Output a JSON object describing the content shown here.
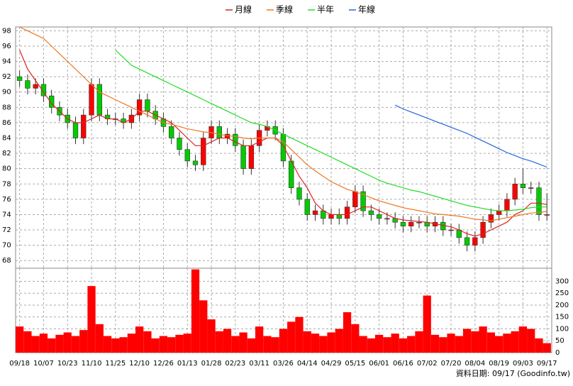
{
  "chart_data": {
    "type": "candlestick",
    "series": [
      {
        "name": "月線",
        "color": "#dd2222",
        "values": [
          95.5,
          93,
          91.5,
          90,
          88.5,
          87.5,
          86.5,
          86,
          86,
          86.5,
          87,
          86.5,
          86.5,
          86,
          86.5,
          87.5,
          87.5,
          87,
          86.5,
          86,
          85,
          84,
          83,
          83,
          83.5,
          84,
          84,
          83.5,
          83,
          83,
          83.5,
          84,
          84,
          83,
          81,
          79,
          77.5,
          75.5,
          74.5,
          74,
          74,
          74,
          74.5,
          75,
          75,
          74.5,
          74,
          73.5,
          73.3,
          73.2,
          73.1,
          73,
          72.8,
          72.6,
          72.4,
          72,
          71.5,
          71.2,
          71.5,
          72,
          72.5,
          73,
          74,
          74.5,
          75.5,
          75.5,
          75.3
        ]
      },
      {
        "name": "季線",
        "color": "#ee7722",
        "values": [
          98.5,
          98,
          97.5,
          97,
          96,
          95,
          94,
          93,
          92,
          91,
          90,
          89.5,
          89,
          88.5,
          88,
          87.5,
          87,
          86.5,
          86,
          85.8,
          85.5,
          85.2,
          85,
          84.8,
          84.7,
          84.5,
          84.3,
          84.2,
          84,
          83.9,
          84,
          84,
          84,
          83.5,
          82.5,
          81.5,
          80.5,
          79.7,
          79,
          78.3,
          77.8,
          77.3,
          77,
          76.6,
          76.2,
          75.8,
          75.5,
          75.2,
          74.9,
          74.7,
          74.5,
          74.3,
          74.1,
          74,
          73.9,
          73.8,
          73.6,
          73.4,
          73.3,
          73.2,
          73.4,
          73.6,
          73.8,
          74,
          74.2,
          74.3,
          74.4
        ]
      },
      {
        "name": "半年",
        "color": "#22dd22",
        "values": [
          null,
          null,
          null,
          null,
          null,
          null,
          null,
          null,
          null,
          null,
          null,
          null,
          95.5,
          94.5,
          93.5,
          93,
          92.5,
          92,
          91.5,
          91,
          90.5,
          90,
          89.5,
          89,
          88.5,
          88,
          87.5,
          87,
          86.5,
          86,
          85.8,
          85.5,
          85,
          84.5,
          84,
          83.5,
          83,
          82.5,
          82,
          81.5,
          81,
          80.5,
          80,
          79.5,
          79,
          78.5,
          78.1,
          77.8,
          77.5,
          77.2,
          77,
          76.7,
          76.4,
          76.1,
          75.8,
          75.5,
          75.2,
          75,
          74.8,
          74.6,
          74.5,
          74.5,
          74.6,
          74.7,
          74.9,
          75,
          75
        ]
      },
      {
        "name": "年線",
        "color": "#2266dd",
        "values": [
          null,
          null,
          null,
          null,
          null,
          null,
          null,
          null,
          null,
          null,
          null,
          null,
          null,
          null,
          null,
          null,
          null,
          null,
          null,
          null,
          null,
          null,
          null,
          null,
          null,
          null,
          null,
          null,
          null,
          null,
          null,
          null,
          null,
          null,
          null,
          null,
          null,
          null,
          null,
          null,
          null,
          null,
          null,
          null,
          null,
          null,
          null,
          88.3,
          87.8,
          87.4,
          87,
          86.6,
          86.2,
          85.8,
          85.4,
          85,
          84.6,
          84.1,
          83.6,
          83.1,
          82.6,
          82.1,
          81.7,
          81.3,
          81,
          80.6,
          80.2
        ]
      }
    ],
    "open": [
      92,
      91.5,
      90.5,
      91,
      89.5,
      88,
      87,
      86,
      84,
      87,
      91,
      87,
      86.5,
      86.5,
      86,
      87,
      89,
      87.5,
      86.5,
      85.5,
      84,
      82.5,
      81,
      80.5,
      84,
      85.5,
      84,
      84.5,
      83,
      80,
      83,
      85,
      85.5,
      84.5,
      81,
      77.5,
      76,
      74,
      74.5,
      73.5,
      74,
      73.5,
      75,
      77,
      74.5,
      74,
      73.5,
      73.5,
      73,
      72.5,
      73,
      73,
      72.5,
      73,
      72,
      72,
      71,
      70,
      71,
      73,
      74,
      74.5,
      76,
      78,
      77.5,
      77.5,
      74
    ],
    "high": [
      92.8,
      92.3,
      91.8,
      91.8,
      90.3,
      88.8,
      87.8,
      86.8,
      87.8,
      91.8,
      91.8,
      87.8,
      87.3,
      87.3,
      87.8,
      89.8,
      89.8,
      88.3,
      87.3,
      86.3,
      84.8,
      83.3,
      81.8,
      84.8,
      86.3,
      86.3,
      85.3,
      85.3,
      83.8,
      83.8,
      85.8,
      86.3,
      86.3,
      85.3,
      81.8,
      78.3,
      76.8,
      75.3,
      75.3,
      74.8,
      74.8,
      75.8,
      77.8,
      77.8,
      75.3,
      74.8,
      74.3,
      74.3,
      73.8,
      73.8,
      73.8,
      73.8,
      73.8,
      73.8,
      72.8,
      72.8,
      71.8,
      71.8,
      73.8,
      74.8,
      75.3,
      76.8,
      78.8,
      80,
      78.3,
      78.3,
      76.8
    ],
    "low": [
      90.7,
      89.7,
      89.7,
      88.7,
      87.2,
      86.2,
      85.2,
      83.2,
      83.2,
      86.2,
      86.2,
      85.7,
      85.7,
      85.2,
      85.2,
      86.2,
      86.7,
      85.7,
      84.7,
      83.2,
      81.7,
      80.2,
      79.7,
      79.7,
      83.2,
      83.2,
      83.2,
      82.2,
      79.2,
      79.2,
      82.2,
      84.2,
      83.7,
      80.2,
      76.7,
      75.2,
      73.2,
      73.2,
      72.7,
      72.7,
      72.7,
      72.7,
      74.2,
      73.7,
      73.2,
      72.7,
      72.7,
      72.2,
      71.7,
      71.7,
      72.2,
      71.7,
      71.7,
      71.2,
      71.2,
      70.2,
      69.2,
      69.2,
      70.2,
      72.2,
      73.2,
      73.7,
      75.2,
      76.7,
      76.7,
      73.2,
      73.2
    ],
    "close": [
      91.5,
      90.5,
      91,
      89.5,
      88,
      87,
      86,
      84,
      87,
      91,
      87,
      86.5,
      86.5,
      86,
      87,
      89,
      87.5,
      86.5,
      85.5,
      84,
      82.5,
      81,
      80.5,
      84,
      85.5,
      84,
      84.5,
      83,
      80,
      83,
      85,
      85.5,
      84.5,
      81,
      77.5,
      76,
      74,
      74.5,
      73.5,
      74,
      73.5,
      75,
      77,
      74.5,
      74,
      73.5,
      73.5,
      73,
      72.5,
      73,
      73,
      72.5,
      73,
      72,
      72,
      71,
      70,
      71,
      73,
      74,
      74.5,
      76,
      78,
      77.5,
      77.5,
      74,
      74
    ],
    "volume": [
      110,
      90,
      70,
      80,
      60,
      75,
      85,
      70,
      95,
      280,
      120,
      70,
      60,
      65,
      80,
      110,
      90,
      60,
      70,
      65,
      75,
      80,
      350,
      220,
      140,
      90,
      100,
      70,
      85,
      60,
      110,
      70,
      65,
      100,
      130,
      150,
      90,
      80,
      70,
      85,
      100,
      170,
      120,
      70,
      60,
      75,
      65,
      80,
      60,
      70,
      90,
      240,
      75,
      65,
      80,
      70,
      100,
      90,
      110,
      85,
      70,
      80,
      90,
      110,
      100,
      60,
      40
    ],
    "up_color": "#ff0000",
    "down_color": "#00cc00",
    "volume_color": "#ff0000",
    "xlim": [
      -0.5,
      66.6
    ],
    "xticks": [
      {
        "value": 0,
        "label": "09/18"
      },
      {
        "value": 3,
        "label": "10/07"
      },
      {
        "value": 6,
        "label": "10/23"
      },
      {
        "value": 9,
        "label": "11/10"
      },
      {
        "value": 12,
        "label": "11/25"
      },
      {
        "value": 15,
        "label": "12/10"
      },
      {
        "value": 18,
        "label": "12/26"
      },
      {
        "value": 21,
        "label": "01/13"
      },
      {
        "value": 24,
        "label": "01/28"
      },
      {
        "value": 27,
        "label": "02/23"
      },
      {
        "value": 30,
        "label": "03/11"
      },
      {
        "value": 33,
        "label": "03/26"
      },
      {
        "value": 36,
        "label": "04/14"
      },
      {
        "value": 39,
        "label": "04/29"
      },
      {
        "value": 42,
        "label": "05/15"
      },
      {
        "value": 45,
        "label": "06/01"
      },
      {
        "value": 48,
        "label": "06/16"
      },
      {
        "value": 51,
        "label": "07/02"
      },
      {
        "value": 54,
        "label": "07/20"
      },
      {
        "value": 57,
        "label": "08/04"
      },
      {
        "value": 60,
        "label": "08/19"
      },
      {
        "value": 63,
        "label": "09/03"
      },
      {
        "value": 66,
        "label": "09/17"
      }
    ],
    "ylim": [
      67,
      98.5
    ],
    "yticks": [
      68,
      70,
      72,
      74,
      76,
      78,
      80,
      82,
      84,
      86,
      88,
      90,
      92,
      94,
      96,
      98
    ],
    "y2lim": [
      0,
      355
    ],
    "y2ticks": [
      0,
      50,
      100,
      150,
      200,
      250,
      300
    ],
    "grid": true,
    "footnote": "資料日期: 09/17  (Goodinfo.tw)"
  }
}
